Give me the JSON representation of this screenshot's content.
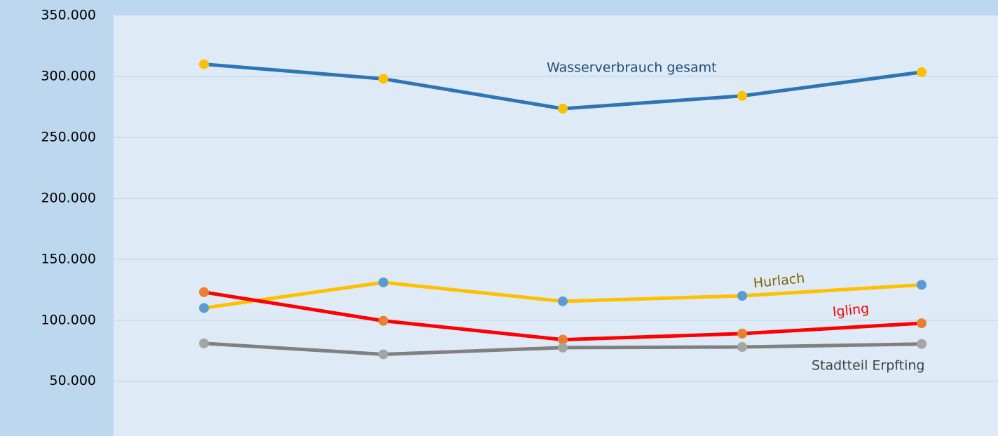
{
  "chart_data": {
    "type": "line",
    "categories": [
      null,
      null,
      null,
      null,
      null
    ],
    "series": [
      {
        "name": "Wasserverbrauch gesamt",
        "color": "#2e75b6",
        "marker_color": "#ffc000",
        "label_color": "#1f4e79",
        "values": [
          310000,
          298000,
          273500,
          284000,
          303500
        ]
      },
      {
        "name": "Hurlach",
        "color": "#ffc000",
        "marker_color": "#5b9bd5",
        "label_color": "#7f6000",
        "values": [
          110000,
          131000,
          115500,
          120000,
          129000
        ]
      },
      {
        "name": "Igling",
        "color": "#ff0000",
        "marker_color": "#ed7d31",
        "label_color": "#ff0000",
        "values": [
          123000,
          99500,
          84000,
          89000,
          97500
        ]
      },
      {
        "name": "Stadtteil Erpfting",
        "color": "#808080",
        "marker_color": "#a5a5a5",
        "label_color": "#404040",
        "values": [
          81000,
          72000,
          77500,
          78000,
          80500
        ]
      }
    ],
    "ylim": [
      5000,
      350000
    ],
    "yticks": [
      {
        "value": 50000,
        "label": "50.000"
      },
      {
        "value": 100000,
        "label": "100.000"
      },
      {
        "value": 150000,
        "label": "150.000"
      },
      {
        "value": 200000,
        "label": "200.000"
      },
      {
        "value": 250000,
        "label": "250.000"
      },
      {
        "value": 300000,
        "label": "300.000"
      },
      {
        "value": 350000,
        "label": "350.000"
      }
    ],
    "grid": true
  }
}
